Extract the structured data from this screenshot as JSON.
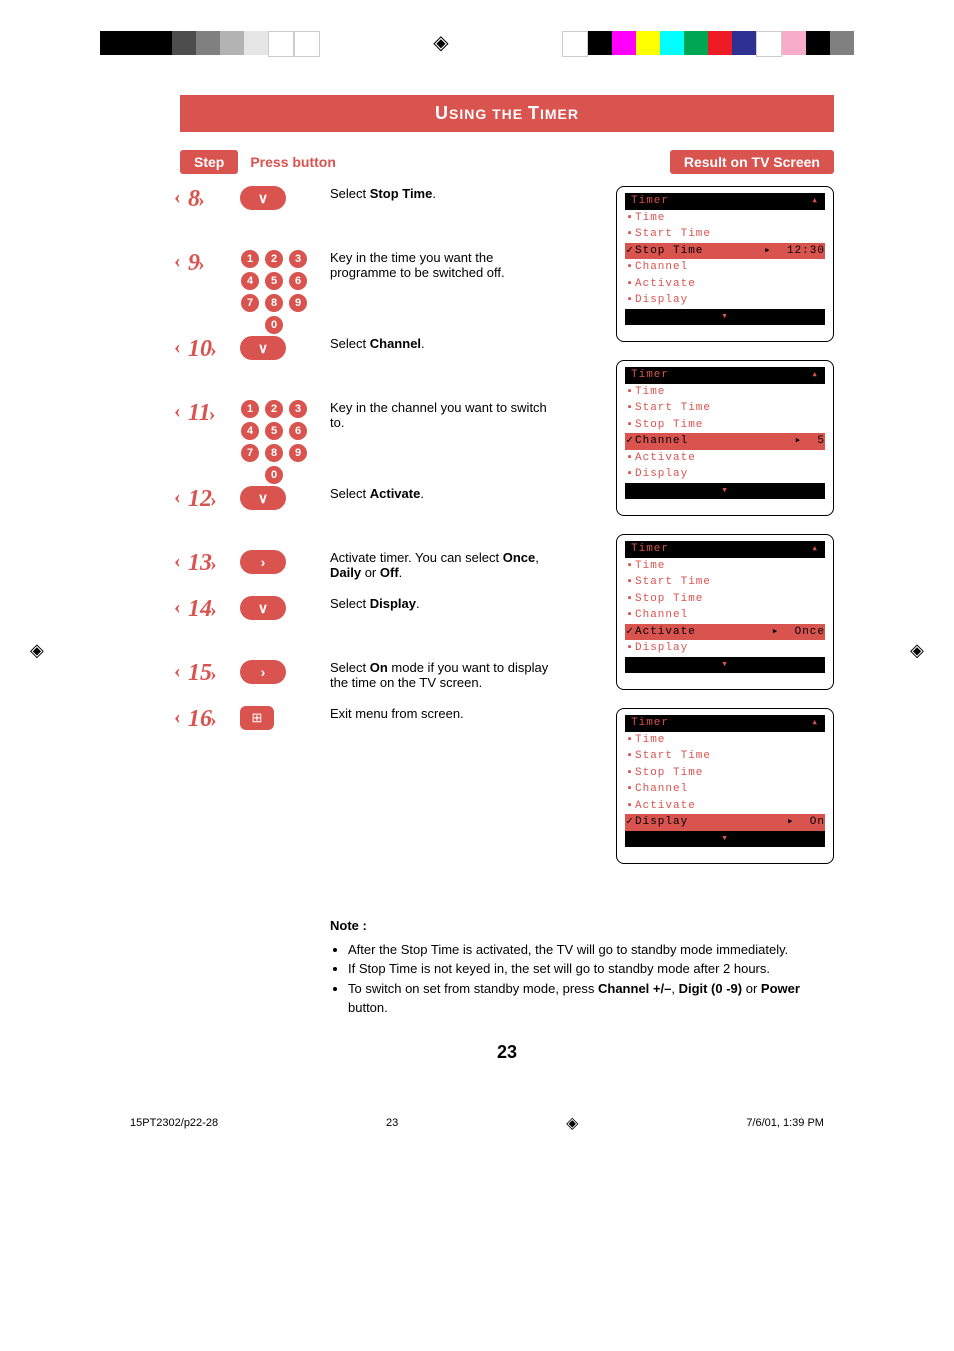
{
  "topColorBarLeft": [
    "#000000",
    "#000000",
    "#000000",
    "#4d4d4d",
    "#808080",
    "#b3b3b3",
    "#e6e6e6",
    "#ffffff",
    "#ffffff"
  ],
  "topColorBarRight": [
    "#ffffff",
    "#000000",
    "#ff00ff",
    "#ffff00",
    "#00ffff",
    "#00a651",
    "#ed1c24",
    "#2e3192",
    "#ffffff",
    "#f7adc9",
    "#000000",
    "#808080"
  ],
  "pageTitle": {
    "small1": "U",
    "main1": "SING",
    " ": " ",
    "small2": "THE ",
    "main2": "T",
    "small3": "IMER"
  },
  "titleText": "USING THE TIMER",
  "header": {
    "step": "Step",
    "press": "Press button",
    "result": "Result on TV Screen"
  },
  "steps": [
    {
      "num": "8",
      "button": "down",
      "descr": "Select <b>Stop Time</b>."
    },
    {
      "num": "9",
      "button": "digits",
      "descr": "Key in the time you want the programme to be switched off."
    },
    {
      "num": "10",
      "button": "down",
      "descr": "Select <b>Channel</b>."
    },
    {
      "num": "11",
      "button": "digits",
      "descr": "Key in the channel you want to switch to."
    },
    {
      "num": "12",
      "button": "down",
      "descr": "Select <b>Activate</b>."
    },
    {
      "num": "13",
      "button": "right",
      "descr": "Activate timer. You can select <b>Once</b>, <b>Daily</b> or <b>Off</b>."
    },
    {
      "num": "14",
      "button": "down",
      "descr": "Select <b>Display</b>."
    },
    {
      "num": "15",
      "button": "right",
      "descr": "Select <b>On</b> mode if you want to display the time on the TV screen."
    },
    {
      "num": "16",
      "button": "menu",
      "descr": "Exit menu from screen."
    }
  ],
  "tvBoxes": [
    {
      "title": "Timer",
      "items": [
        {
          "label": "Time",
          "sel": false,
          "val": ""
        },
        {
          "label": "Start Time",
          "sel": false,
          "val": ""
        },
        {
          "label": "Stop Time",
          "sel": true,
          "val": "12:30"
        },
        {
          "label": "Channel",
          "sel": false,
          "val": ""
        },
        {
          "label": "Activate",
          "sel": false,
          "val": ""
        },
        {
          "label": "Display",
          "sel": false,
          "val": ""
        }
      ]
    },
    {
      "title": "Timer",
      "items": [
        {
          "label": "Time",
          "sel": false,
          "val": ""
        },
        {
          "label": "Start Time",
          "sel": false,
          "val": ""
        },
        {
          "label": "Stop Time",
          "sel": false,
          "val": ""
        },
        {
          "label": "Channel",
          "sel": true,
          "val": "5"
        },
        {
          "label": "Activate",
          "sel": false,
          "val": ""
        },
        {
          "label": "Display",
          "sel": false,
          "val": ""
        }
      ]
    },
    {
      "title": "Timer",
      "items": [
        {
          "label": "Time",
          "sel": false,
          "val": ""
        },
        {
          "label": "Start Time",
          "sel": false,
          "val": ""
        },
        {
          "label": "Stop Time",
          "sel": false,
          "val": ""
        },
        {
          "label": "Channel",
          "sel": false,
          "val": ""
        },
        {
          "label": "Activate",
          "sel": true,
          "val": "Once"
        },
        {
          "label": "Display",
          "sel": false,
          "val": ""
        }
      ]
    },
    {
      "title": "Timer",
      "items": [
        {
          "label": "Time",
          "sel": false,
          "val": ""
        },
        {
          "label": "Start Time",
          "sel": false,
          "val": ""
        },
        {
          "label": "Stop Time",
          "sel": false,
          "val": ""
        },
        {
          "label": "Channel",
          "sel": false,
          "val": ""
        },
        {
          "label": "Activate",
          "sel": false,
          "val": ""
        },
        {
          "label": "Display",
          "sel": true,
          "val": "On"
        }
      ]
    }
  ],
  "note": {
    "title": "Note :",
    "bullets": [
      "After the Stop Time is activated, the TV will go to standby mode immediately.",
      "If Stop Time is not keyed in,  the set will go to standby mode after 2 hours.",
      "To switch on set from standby mode, press <b>Channel +/–</b>, <b>Digit (0 -9)</b> or <b>Power</b> button."
    ]
  },
  "pageNumber": "23",
  "footer": {
    "left": "15PT2302/p22-28",
    "mid": "23",
    "right": "7/6/01, 1:39 PM"
  },
  "colors": {
    "accent": "#d9534f"
  }
}
